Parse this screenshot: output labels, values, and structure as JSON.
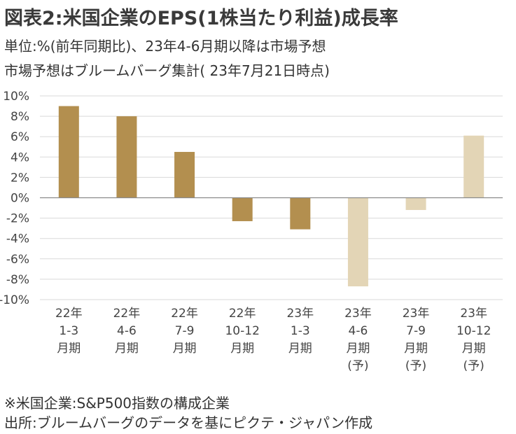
{
  "title": "図表2:米国企業のEPS(1株当たり利益)成長率",
  "subtitle_lines": [
    "単位:%(前年同期比)、23年4-6月期以降は市場予想",
    "市場予想はブルームバーグ集計( 23年7月21日時点)"
  ],
  "notes": [
    "※米国企業:S&P500指数の構成企業",
    "出所:ブルームバーグのデータを基にピクテ・ジャパン作成"
  ],
  "colors": {
    "actual": "#b38f4f",
    "forecast": "#e3d5b6",
    "grid": "#d9d9d9",
    "axis": "#8a8a8a"
  },
  "chart_data": {
    "type": "bar",
    "categories": [
      [
        "22年",
        "1-3",
        "月期"
      ],
      [
        "22年",
        "4-6",
        "月期"
      ],
      [
        "22年",
        "7-9",
        "月期"
      ],
      [
        "22年",
        "10-12",
        "月期"
      ],
      [
        "23年",
        "1-3",
        "月期"
      ],
      [
        "23年",
        "4-6",
        "月期",
        "(予)"
      ],
      [
        "23年",
        "7-9",
        "月期",
        "(予)"
      ],
      [
        "23年",
        "10-12",
        "月期",
        "(予)"
      ]
    ],
    "values": [
      9.0,
      8.0,
      4.5,
      -2.3,
      -3.1,
      -8.7,
      -1.2,
      6.1
    ],
    "forecast": [
      false,
      false,
      false,
      false,
      false,
      true,
      true,
      true
    ],
    "yticks": [
      "10%",
      "8%",
      "6%",
      "4%",
      "2%",
      "0%",
      "-2%",
      "-4%",
      "-6%",
      "-8%",
      "-10%"
    ],
    "ylim": [
      -10,
      10
    ],
    "grid": true
  }
}
